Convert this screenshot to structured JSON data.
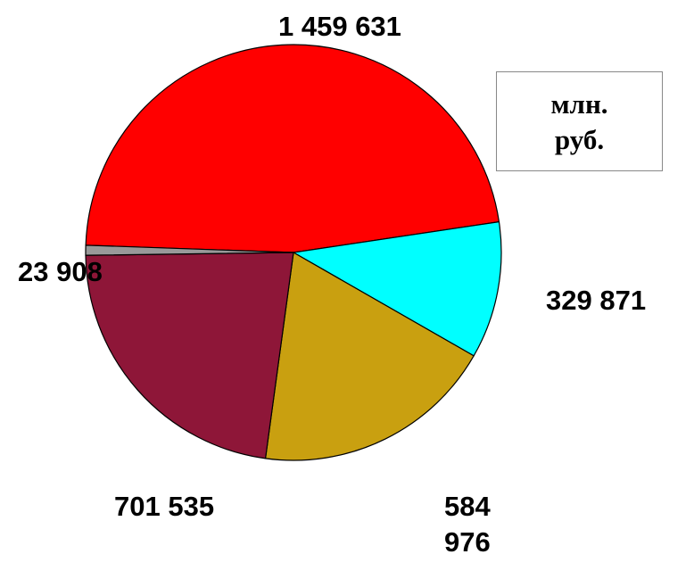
{
  "chart_data": {
    "type": "pie",
    "values": [
      1459631,
      329871,
      584976,
      701535,
      23908
    ],
    "value_labels": [
      "1 459 631",
      "329 871",
      "584 976",
      "701 535",
      "23 908"
    ],
    "colors": [
      "#ff0000",
      "#00ffff",
      "#c9a010",
      "#8e1638",
      "#999999"
    ],
    "unit": "млн. руб."
  }
}
